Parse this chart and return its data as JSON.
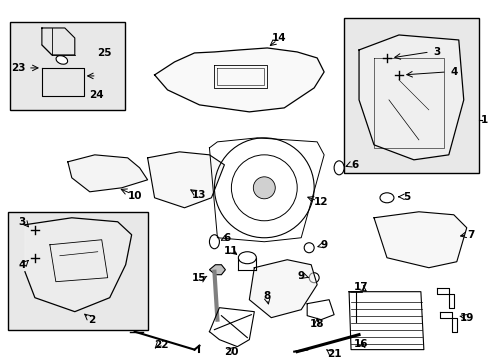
{
  "bg_color": "#ffffff",
  "line_color": "#000000",
  "box_fill": "#e8e8e8"
}
